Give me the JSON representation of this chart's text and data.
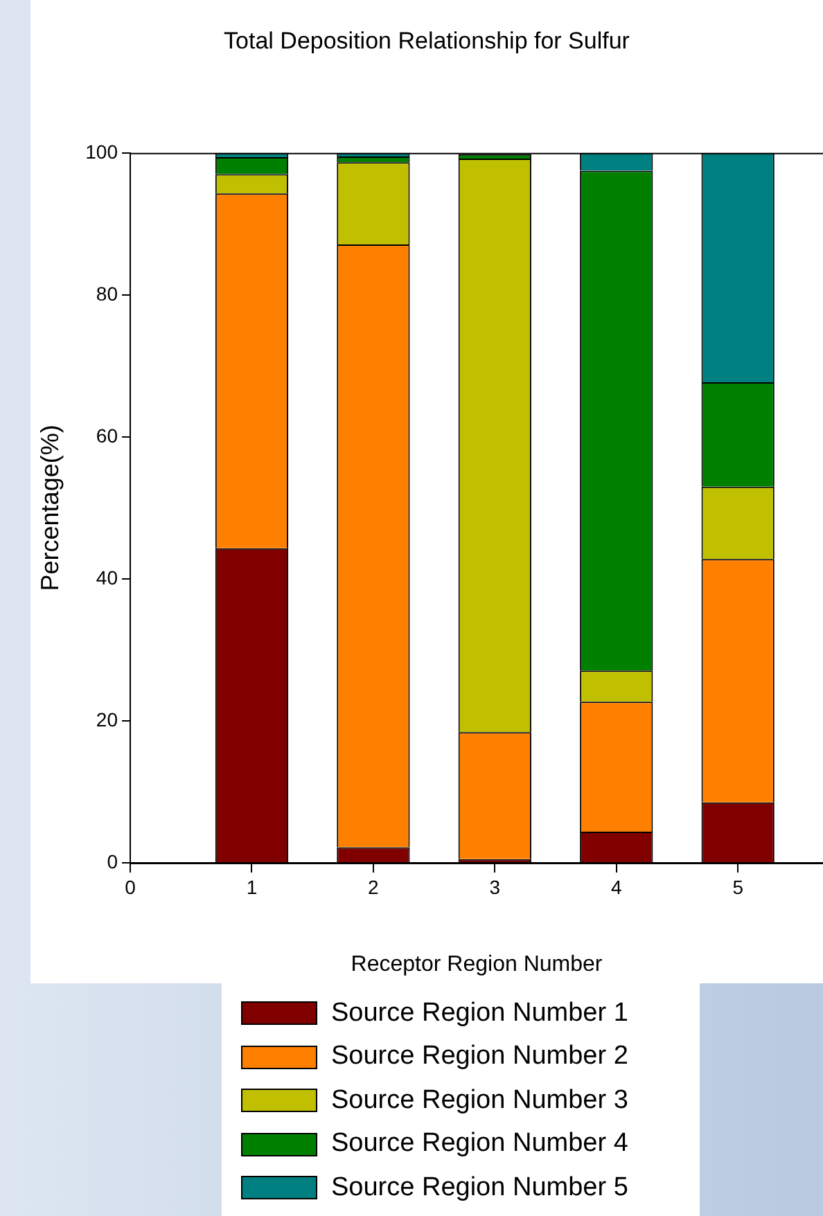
{
  "chart_data": {
    "type": "bar",
    "title": "Total Deposition Relationship for Sulfur",
    "xlabel": "Receptor Region Number",
    "ylabel": "Percentage(%)",
    "stacked": true,
    "x": [
      1,
      2,
      3,
      4,
      5
    ],
    "xlim": [
      0,
      5.7
    ],
    "xticks": [
      0,
      1,
      2,
      3,
      4,
      5
    ],
    "ylim": [
      0,
      100
    ],
    "yticks": [
      0,
      20,
      40,
      60,
      80,
      100
    ],
    "grid": false,
    "legend": "bottom",
    "series": [
      {
        "name": "Source Region Number 1",
        "color": "#800000",
        "values": [
          44.3,
          2.2,
          0.5,
          4.4,
          8.5
        ]
      },
      {
        "name": "Source Region Number 2",
        "color": "#ff8000",
        "values": [
          50.0,
          84.9,
          17.9,
          18.3,
          34.3
        ]
      },
      {
        "name": "Source Region Number 3",
        "color": "#c0c000",
        "values": [
          2.7,
          11.6,
          80.8,
          4.4,
          10.2
        ]
      },
      {
        "name": "Source Region Number 4",
        "color": "#008000",
        "values": [
          2.4,
          0.8,
          0.6,
          70.4,
          14.7
        ]
      },
      {
        "name": "Source Region Number 5",
        "color": "#008080",
        "values": [
          0.6,
          0.5,
          null,
          2.5,
          32.3
        ]
      }
    ]
  }
}
